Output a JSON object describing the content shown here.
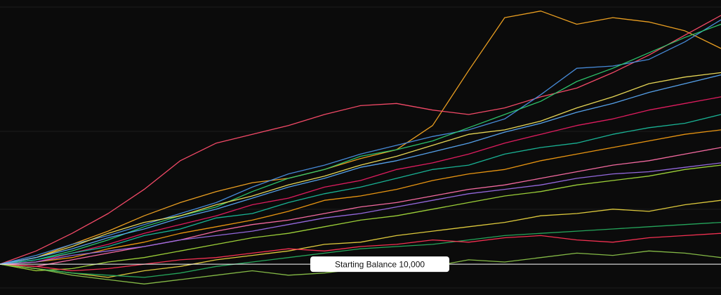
{
  "chart_data": {
    "type": "line",
    "ylim": [
      8600,
      22000
    ],
    "reference": {
      "value": 10000,
      "label": "Starting Balance 10,000"
    },
    "series": [
      {
        "color": "#f5a623",
        "values": [
          10000,
          10300,
          10900,
          11500,
          12200,
          12800,
          13300,
          13700,
          13900,
          14300,
          14800,
          15200,
          16300,
          18800,
          21200,
          21500,
          20900,
          21200,
          21000,
          20600,
          19800
        ]
      },
      {
        "color": "#ff4d6d",
        "values": [
          10000,
          10600,
          11400,
          12300,
          13400,
          14700,
          15500,
          15900,
          16300,
          16800,
          17200,
          17300,
          17000,
          16800,
          17100,
          17600,
          18000,
          18700,
          19500,
          20400,
          21300
        ]
      },
      {
        "color": "#4a90e2",
        "values": [
          10000,
          10400,
          10900,
          11300,
          11800,
          12300,
          12800,
          13500,
          14100,
          14500,
          15000,
          15400,
          15800,
          16100,
          16600,
          17700,
          18900,
          19000,
          19300,
          20100,
          21100
        ]
      },
      {
        "color": "#2ecc71",
        "values": [
          10000,
          10200,
          10600,
          11100,
          11700,
          12200,
          12600,
          13300,
          13900,
          14300,
          14900,
          15200,
          15600,
          16200,
          16800,
          17400,
          18300,
          18900,
          19600,
          20300,
          20900
        ]
      },
      {
        "color": "#f1e05a",
        "values": [
          10000,
          10300,
          10800,
          11400,
          11900,
          12200,
          12700,
          13100,
          13600,
          14000,
          14500,
          14900,
          15400,
          15900,
          16100,
          16500,
          17100,
          17600,
          18200,
          18500,
          18700
        ]
      },
      {
        "color": "#e91e63",
        "values": [
          10000,
          10100,
          10500,
          10900,
          11400,
          11800,
          12200,
          12700,
          13000,
          13500,
          13800,
          14300,
          14600,
          15000,
          15500,
          15900,
          16300,
          16600,
          17000,
          17300,
          17600
        ]
      },
      {
        "color": "#1abc9c",
        "values": [
          10000,
          10200,
          10500,
          10800,
          11300,
          11600,
          12100,
          12300,
          12800,
          13200,
          13500,
          13900,
          14300,
          14500,
          15000,
          15300,
          15500,
          15900,
          16200,
          16400,
          16800
        ]
      },
      {
        "color": "#f39c12",
        "values": [
          10000,
          10100,
          10300,
          10700,
          11000,
          11400,
          11700,
          12000,
          12400,
          12900,
          13100,
          13400,
          13800,
          14100,
          14300,
          14700,
          15000,
          15300,
          15600,
          15900,
          16100
        ]
      },
      {
        "color": "#ff6fa8",
        "values": [
          10000,
          9900,
          10200,
          10500,
          10800,
          11100,
          11500,
          11800,
          12000,
          12300,
          12600,
          12800,
          13100,
          13400,
          13600,
          13900,
          14200,
          14500,
          14700,
          15000,
          15300
        ]
      },
      {
        "color": "#a3d93b",
        "values": [
          10000,
          9700,
          9800,
          10100,
          10300,
          10600,
          10900,
          11200,
          11400,
          11700,
          12000,
          12200,
          12500,
          12800,
          13100,
          13300,
          13600,
          13800,
          14000,
          14300,
          14500
        ]
      },
      {
        "color": "#9b6ee8",
        "values": [
          10000,
          10100,
          10400,
          10600,
          10800,
          11100,
          11300,
          11500,
          11800,
          12100,
          12300,
          12600,
          12900,
          13200,
          13400,
          13600,
          13900,
          14100,
          14200,
          14400,
          14600
        ]
      },
      {
        "color": "#e8d33f",
        "values": [
          10000,
          9800,
          9600,
          9400,
          9700,
          9900,
          10200,
          10400,
          10600,
          10900,
          11000,
          11300,
          11500,
          11700,
          11900,
          12200,
          12300,
          12500,
          12400,
          12700,
          12900
        ]
      },
      {
        "color": "#27ae60",
        "values": [
          10000,
          9800,
          9600,
          9500,
          9400,
          9600,
          9900,
          10100,
          10300,
          10500,
          10700,
          10800,
          10900,
          11100,
          11300,
          11400,
          11500,
          11600,
          11700,
          11800,
          11900
        ]
      },
      {
        "color": "#ff3355",
        "values": [
          10000,
          9900,
          9700,
          9800,
          10000,
          10200,
          10300,
          10500,
          10700,
          10600,
          10800,
          10900,
          11100,
          11000,
          11200,
          11300,
          11100,
          11000,
          11200,
          11300,
          11400
        ]
      },
      {
        "color": "#8bc34a",
        "values": [
          10000,
          9800,
          9500,
          9300,
          9100,
          9300,
          9500,
          9700,
          9500,
          9600,
          9800,
          9700,
          9900,
          10200,
          10100,
          10300,
          10500,
          10400,
          10600,
          10500,
          10300
        ]
      },
      {
        "color": "#5aa9f5",
        "values": [
          10000,
          10300,
          10700,
          11200,
          11600,
          12100,
          12500,
          13000,
          13500,
          13900,
          14400,
          14700,
          15100,
          15500,
          16000,
          16400,
          16900,
          17300,
          17800,
          18200,
          18600
        ]
      }
    ]
  }
}
